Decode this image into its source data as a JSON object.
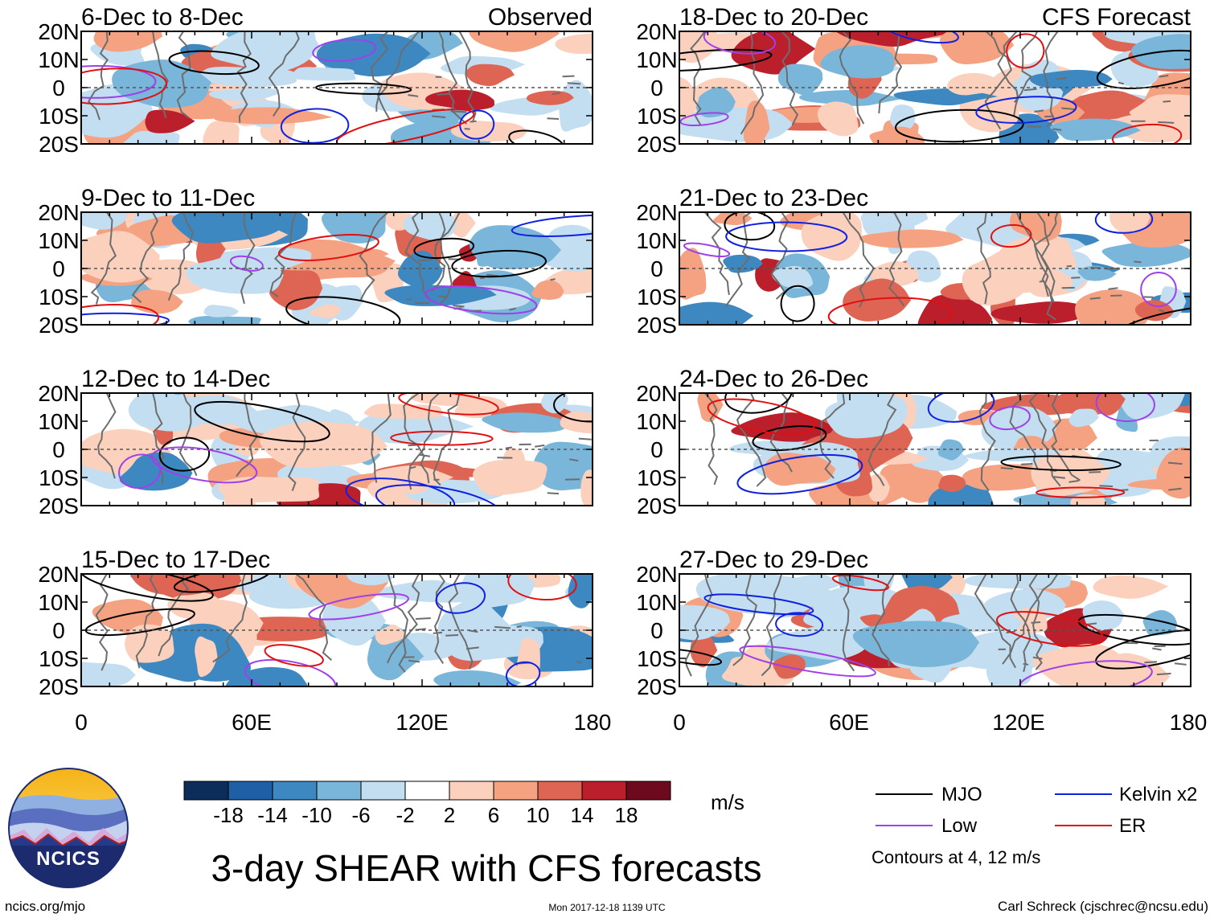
{
  "title": "3-day SHEAR with CFS forecasts",
  "left_column_label": "Observed",
  "right_column_label": "CFS Forecast",
  "panels_left": [
    {
      "label": "6-Dec to 8-Dec"
    },
    {
      "label": "9-Dec to 11-Dec"
    },
    {
      "label": "12-Dec to 14-Dec"
    },
    {
      "label": "15-Dec to 17-Dec"
    }
  ],
  "panels_right": [
    {
      "label": "18-Dec to 20-Dec"
    },
    {
      "label": "21-Dec to 23-Dec"
    },
    {
      "label": "24-Dec to 26-Dec"
    },
    {
      "label": "27-Dec to 29-Dec"
    }
  ],
  "lat_labels": [
    "20N",
    "10N",
    "0",
    "10S",
    "20S"
  ],
  "lon_labels": [
    "0",
    "60E",
    "120E",
    "180"
  ],
  "colorbar": {
    "unit": "m/s",
    "tick_labels": [
      "-18",
      "-14",
      "-10",
      "-6",
      "-2",
      "2",
      "6",
      "10",
      "14",
      "18"
    ],
    "colors": [
      "#0c2c5a",
      "#1f5fa6",
      "#3e88c2",
      "#7ab6da",
      "#c3def0",
      "#ffffff",
      "#fbd1bd",
      "#f4a282",
      "#de6553",
      "#bb1f2c",
      "#6d0a1e"
    ]
  },
  "legend": {
    "items": [
      {
        "label": "MJO",
        "color": "#000000"
      },
      {
        "label": "Kelvin x2",
        "color": "#1020e0"
      },
      {
        "label": "Low",
        "color": "#a040e8"
      },
      {
        "label": "ER",
        "color": "#e01010"
      }
    ],
    "note": "Contours at 4, 12 m/s"
  },
  "logo_text": "NCICS",
  "footer": {
    "left": "ncics.org/mjo",
    "center": "Mon 2017-12-18 1139 UTC",
    "right": "Carl Schreck (cjschrec@ncsu.edu)"
  }
}
